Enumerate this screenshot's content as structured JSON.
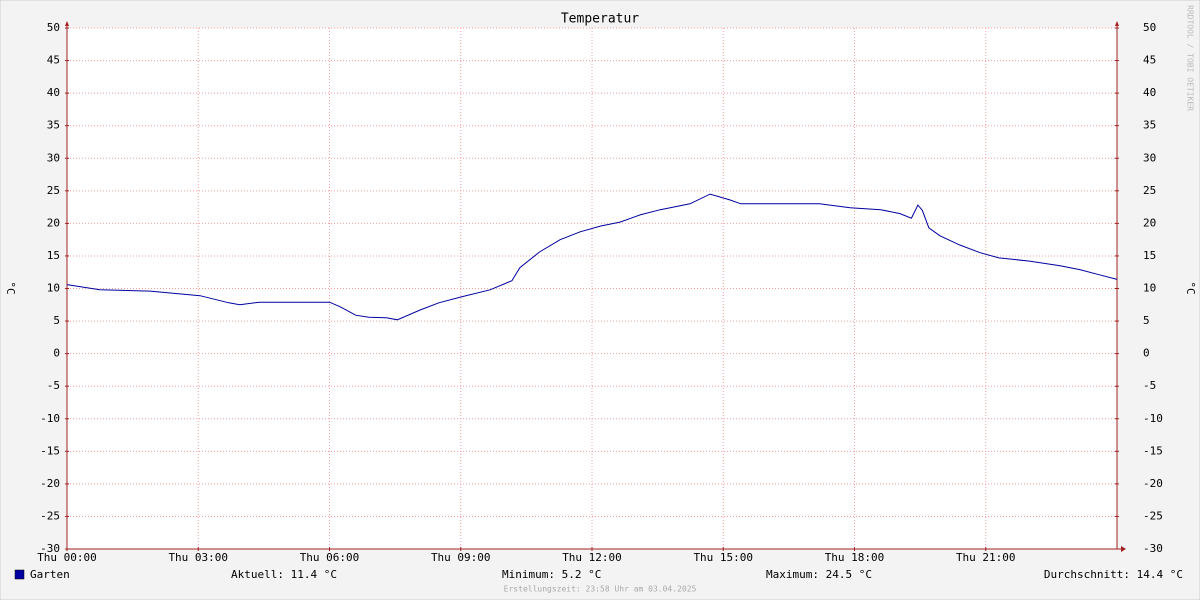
{
  "chart_data": {
    "type": "line",
    "title": "Temperatur",
    "ylabel": "°C",
    "watermark": "RRDTOOL / TOBI OETIKER",
    "x": [
      0,
      0.75,
      1.9,
      3.04,
      3.7,
      3.95,
      4.4,
      5.3,
      6,
      6.24,
      6.6,
      6.9,
      7.3,
      7.55,
      8.07,
      8.5,
      9,
      9.67,
      10.17,
      10.35,
      10.8,
      11.27,
      11.73,
      12.2,
      12.64,
      13.1,
      13.56,
      14.24,
      14.7,
      15.15,
      15.4,
      16.3,
      17.2,
      17.9,
      18.6,
      19.04,
      19.3,
      19.45,
      19.55,
      19.7,
      19.95,
      20.4,
      20.87,
      21.3,
      22,
      22.7,
      23.15,
      23.6,
      24
    ],
    "series": [
      {
        "name": "Garten",
        "color": "#0000a0",
        "values": [
          10.6,
          9.8,
          9.6,
          8.9,
          7.8,
          7.5,
          7.9,
          7.9,
          7.9,
          7.2,
          5.9,
          5.6,
          5.5,
          5.2,
          6.7,
          7.8,
          8.7,
          9.8,
          11.2,
          13.2,
          15.6,
          17.5,
          18.7,
          19.6,
          20.2,
          21.3,
          22.1,
          23,
          24.5,
          23.6,
          23,
          23,
          23,
          22.4,
          22.1,
          21.5,
          20.8,
          22.8,
          22,
          19.3,
          18.1,
          16.7,
          15.5,
          14.7,
          14.2,
          13.5,
          12.9,
          12.1,
          11.4
        ]
      }
    ],
    "xlim": [
      0,
      24
    ],
    "xticks": [
      {
        "value": 0,
        "label": "Thu 00:00"
      },
      {
        "value": 3,
        "label": "Thu 03:00"
      },
      {
        "value": 6,
        "label": "Thu 06:00"
      },
      {
        "value": 9,
        "label": "Thu 09:00"
      },
      {
        "value": 12,
        "label": "Thu 12:00"
      },
      {
        "value": 15,
        "label": "Thu 15:00"
      },
      {
        "value": 18,
        "label": "Thu 18:00"
      },
      {
        "value": 21,
        "label": "Thu 21:00"
      }
    ],
    "ylim": [
      -30,
      50
    ],
    "yticks": [
      -30,
      -25,
      -20,
      -15,
      -10,
      -5,
      0,
      5,
      10,
      15,
      20,
      25,
      30,
      35,
      40,
      45,
      50
    ],
    "grid": true,
    "stats": [
      "Aktuell: 11.4 °C",
      "Minimum: 5.2 °C",
      "Maximum: 24.5 °C",
      "Durchschnitt: 14.4 °C"
    ],
    "footer": "Erstellungszeit: 23:58 Uhr am 03.04.2025"
  }
}
